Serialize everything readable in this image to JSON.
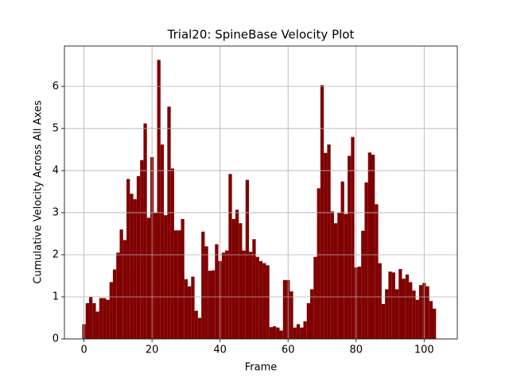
{
  "chart_data": {
    "type": "bar",
    "title": "Trial20: SpineBase Velocity Plot",
    "x_label": "Frame",
    "y_label": "Cumulative Velocity Across All Axes",
    "color": "#800000",
    "grid": true,
    "x": [
      0,
      1,
      2,
      3,
      4,
      5,
      6,
      7,
      8,
      9,
      10,
      11,
      12,
      13,
      14,
      15,
      16,
      17,
      18,
      19,
      20,
      21,
      22,
      23,
      24,
      25,
      26,
      27,
      28,
      29,
      30,
      31,
      32,
      33,
      34,
      35,
      36,
      37,
      38,
      39,
      40,
      41,
      42,
      43,
      44,
      45,
      46,
      47,
      48,
      49,
      50,
      51,
      52,
      53,
      54,
      55,
      56,
      57,
      58,
      59,
      60,
      61,
      62,
      63,
      64,
      65,
      66,
      67,
      68,
      69,
      70,
      71,
      72,
      73,
      74,
      75,
      76,
      77,
      78,
      79,
      80,
      81,
      82,
      83,
      84,
      85,
      86,
      87,
      88,
      89,
      90,
      91,
      92,
      93,
      94,
      95,
      96,
      97,
      98,
      99,
      100,
      101,
      102,
      103
    ],
    "values": [
      0.35,
      0.85,
      1.0,
      0.85,
      0.65,
      0.97,
      0.97,
      0.93,
      1.35,
      1.65,
      2.05,
      2.6,
      2.35,
      3.8,
      3.45,
      3.32,
      3.87,
      4.25,
      5.12,
      2.88,
      4.32,
      3.0,
      6.63,
      4.62,
      2.94,
      5.52,
      4.05,
      2.58,
      2.58,
      2.85,
      1.42,
      1.25,
      1.48,
      0.67,
      0.5,
      2.55,
      2.2,
      1.62,
      1.63,
      2.25,
      1.85,
      2.05,
      2.1,
      3.92,
      2.85,
      3.07,
      2.75,
      2.1,
      3.78,
      2.07,
      2.37,
      1.95,
      1.85,
      1.8,
      1.75,
      0.28,
      0.3,
      0.27,
      0.2,
      1.4,
      1.4,
      1.13,
      0.27,
      0.35,
      0.27,
      0.42,
      0.85,
      1.18,
      1.95,
      3.58,
      6.03,
      4.42,
      4.62,
      3.03,
      2.75,
      3.0,
      3.74,
      2.97,
      4.35,
      4.8,
      1.7,
      1.72,
      2.57,
      3.72,
      4.43,
      4.38,
      3.2,
      1.8,
      0.83,
      1.18,
      1.6,
      1.58,
      1.18,
      1.66,
      1.43,
      1.53,
      1.35,
      1.15,
      0.93,
      1.28,
      1.33,
      1.25,
      0.9,
      0.72
    ],
    "xlim": [
      -5.75,
      109.75
    ],
    "xticks": [
      0,
      20,
      40,
      60,
      80,
      100
    ],
    "ylim": [
      0,
      6.96
    ],
    "yticks": [
      0,
      1,
      2,
      3,
      4,
      5,
      6
    ]
  }
}
